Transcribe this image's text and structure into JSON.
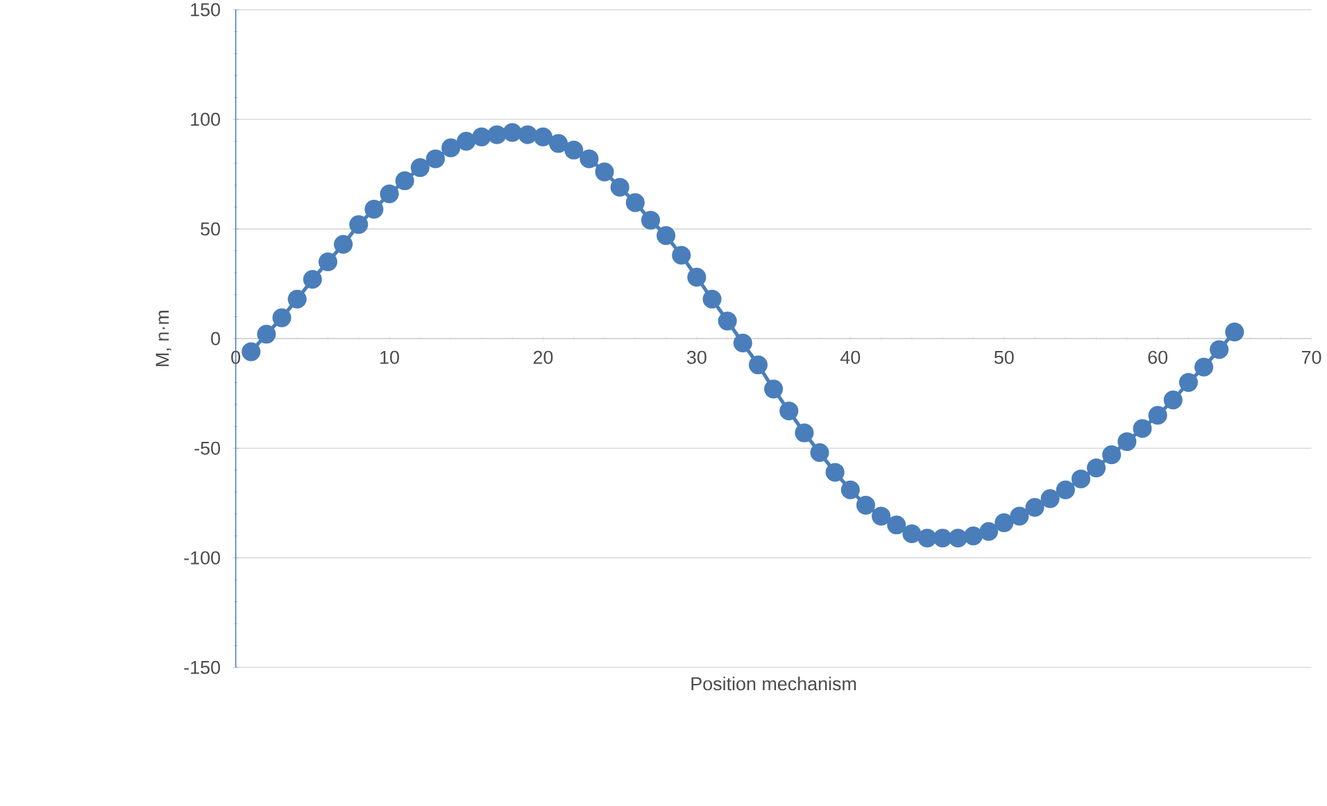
{
  "chart_data": {
    "type": "line",
    "xlabel": "Position mechanism",
    "ylabel": "M, n·m",
    "x": [
      1,
      2,
      3,
      4,
      5,
      6,
      7,
      8,
      9,
      10,
      11,
      12,
      13,
      14,
      15,
      16,
      17,
      18,
      19,
      20,
      21,
      22,
      23,
      24,
      25,
      26,
      27,
      28,
      29,
      30,
      31,
      32,
      33,
      34,
      35,
      36,
      37,
      38,
      39,
      40,
      41,
      42,
      43,
      44,
      45,
      46,
      47,
      48,
      49,
      50,
      51,
      52,
      53,
      54,
      55,
      56,
      57,
      58,
      59,
      60,
      61,
      62,
      63,
      64,
      65
    ],
    "series": [
      {
        "color": "#4a7ebb",
        "values": [
          -6,
          2,
          9.5,
          18,
          27,
          35,
          43,
          52,
          59,
          66,
          72,
          78,
          82,
          87,
          90,
          92,
          93,
          94,
          93,
          92,
          89,
          86,
          82,
          76,
          69,
          62,
          54,
          47,
          38,
          28,
          18,
          8,
          -2,
          -12,
          -23,
          -33,
          -43,
          -52,
          -61,
          -69,
          -76,
          -81,
          -85,
          -89,
          -91,
          -91,
          -91,
          -90,
          -88,
          -84,
          -81,
          -77,
          -73,
          -69,
          -64,
          -59,
          -53,
          -47,
          -41,
          -35,
          -28,
          -20,
          -13,
          -5,
          3
        ]
      }
    ],
    "xlim": [
      0,
      70
    ],
    "ylim": [
      -150,
      150
    ],
    "xticks": [
      0,
      10,
      20,
      30,
      40,
      50,
      60,
      70
    ],
    "yticks": [
      -150,
      -100,
      -50,
      0,
      50,
      100,
      150
    ],
    "grid": "y",
    "marker": "circle",
    "line_style": "solid"
  }
}
